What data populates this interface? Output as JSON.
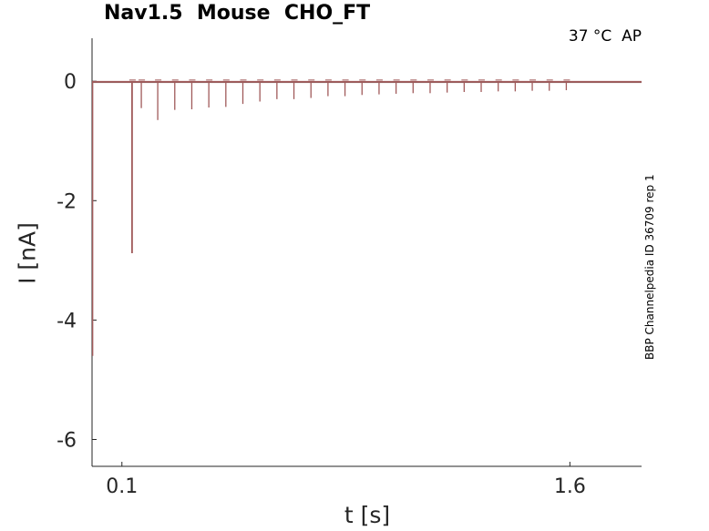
{
  "title": "Nav1.5  Mouse  CHO_FT",
  "condition_label": "37 °C  AP",
  "side_label": "BBP Channelpedia ID 36709 rep 1",
  "chart_data": {
    "type": "line",
    "title": "Nav1.5  Mouse  CHO_FT",
    "xlabel": "t [s]",
    "ylabel": "I [nA]",
    "xlim": [
      0.0,
      1.84
    ],
    "ylim": [
      -6.45,
      0.72
    ],
    "xticks": [
      0.1,
      1.6
    ],
    "xtick_labels": [
      "0.1",
      "1.6"
    ],
    "yticks": [
      0,
      -2,
      -4,
      -6
    ],
    "ytick_labels": [
      "0",
      "-2",
      "-4",
      "-6"
    ],
    "grid": false,
    "line_color": "#a05a5a",
    "baseline": -0.01,
    "initial_transient": {
      "t": 0.002,
      "min": -4.6
    },
    "spike_times": [
      0.134,
      0.165,
      0.22,
      0.277,
      0.334,
      0.391,
      0.448,
      0.505,
      0.562,
      0.619,
      0.676,
      0.733,
      0.79,
      0.847,
      0.904,
      0.961,
      1.018,
      1.075,
      1.132,
      1.189,
      1.246,
      1.303,
      1.36,
      1.417,
      1.474,
      1.531,
      1.588
    ],
    "spike_peaks": [
      -2.88,
      -0.45,
      -0.65,
      -0.48,
      -0.47,
      -0.44,
      -0.43,
      -0.38,
      -0.34,
      -0.3,
      -0.3,
      -0.28,
      -0.25,
      -0.25,
      -0.23,
      -0.22,
      -0.21,
      -0.2,
      -0.2,
      -0.19,
      -0.18,
      -0.18,
      -0.17,
      -0.17,
      -0.16,
      -0.16,
      -0.15
    ]
  }
}
